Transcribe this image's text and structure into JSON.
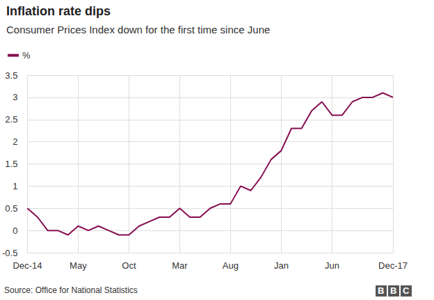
{
  "chart_data": {
    "type": "line",
    "title": "Inflation rate dips",
    "subtitle": "Consumer Prices Index down for the first time since June",
    "source": "Source: Office for National Statistics",
    "logo": "BBC",
    "categories": [
      "Dec-14",
      null,
      null,
      null,
      null,
      "May",
      null,
      null,
      null,
      null,
      "Oct",
      null,
      null,
      null,
      null,
      "Mar",
      null,
      null,
      null,
      null,
      "Aug",
      null,
      null,
      null,
      null,
      "Jan",
      null,
      null,
      null,
      null,
      "Jun",
      null,
      null,
      null,
      null,
      null,
      "Dec-17"
    ],
    "series": [
      {
        "name": "%",
        "color": "#850d4f",
        "values": [
          0.5,
          0.3,
          0.0,
          0.0,
          -0.1,
          0.1,
          0.0,
          0.1,
          0.0,
          -0.1,
          -0.1,
          0.1,
          0.2,
          0.3,
          0.3,
          0.5,
          0.3,
          0.3,
          0.5,
          0.6,
          0.6,
          1.0,
          0.9,
          1.2,
          1.6,
          1.8,
          2.3,
          2.3,
          2.7,
          2.9,
          2.6,
          2.6,
          2.9,
          3.0,
          3.0,
          3.1,
          3.0
        ]
      }
    ],
    "ylim": [
      -0.5,
      3.5
    ],
    "yticks": [
      -0.5,
      0,
      0.5,
      1,
      1.5,
      2,
      2.5,
      3,
      3.5
    ],
    "grid": true,
    "legend": "top-left"
  }
}
